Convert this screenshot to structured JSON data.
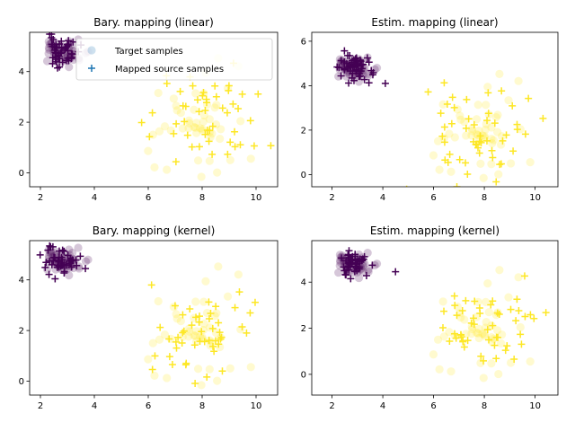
{
  "figure": {
    "legend": {
      "entries": [
        {
          "label": "Target samples",
          "marker": "circle",
          "color": "#1f77b4"
        },
        {
          "label": "Mapped source samples",
          "marker": "plus",
          "color": "#1f77b4"
        }
      ],
      "placement": "upper-right of first subplot"
    },
    "colors": {
      "class0": "#440154",
      "class1": "#fde725",
      "legend": "#1f77b4"
    }
  },
  "chart_data": [
    {
      "type": "scatter",
      "title": "Bary. mapping (linear)",
      "xlim": [
        1.6,
        10.8
      ],
      "ylim": [
        -0.55,
        5.55
      ],
      "xticks": [
        2,
        4,
        6,
        8,
        10
      ],
      "yticks": [
        0,
        2,
        4
      ],
      "seed": 11,
      "src_spread": 1.0,
      "outlier": null
    },
    {
      "type": "scatter",
      "title": "Estim. mapping (linear)",
      "xlim": [
        1.2,
        10.9
      ],
      "ylim": [
        -0.55,
        6.4
      ],
      "xticks": [
        2,
        4,
        6,
        8,
        10
      ],
      "yticks": [
        0,
        2,
        4,
        6
      ],
      "seed": 23,
      "src_spread": 1.25,
      "outlier": [
        4.1,
        4.1
      ]
    },
    {
      "type": "scatter",
      "title": "Bary. mapping (kernel)",
      "xlim": [
        1.6,
        10.8
      ],
      "ylim": [
        -0.55,
        5.55
      ],
      "xticks": [
        2,
        4,
        6,
        8,
        10
      ],
      "yticks": [
        0,
        2,
        4
      ],
      "seed": 37,
      "src_spread": 1.0,
      "outlier": null
    },
    {
      "type": "scatter",
      "title": "Estim. mapping (kernel)",
      "xlim": [
        1.2,
        10.9
      ],
      "ylim": [
        -0.9,
        5.8
      ],
      "xticks": [
        2,
        4,
        6,
        8,
        10
      ],
      "yticks": [
        0,
        2,
        4
      ],
      "seed": 51,
      "src_spread": 0.9,
      "outlier": [
        4.5,
        4.45
      ]
    }
  ]
}
